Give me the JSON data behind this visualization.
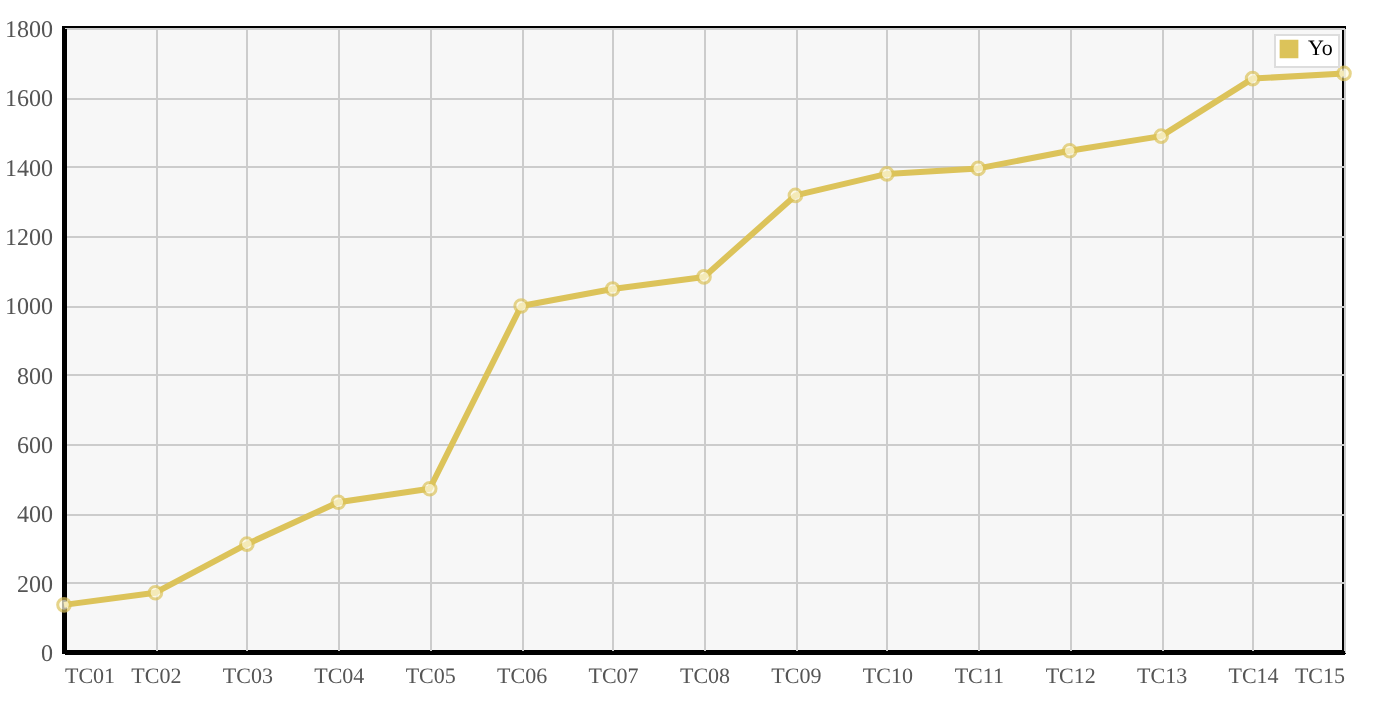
{
  "chart_data": {
    "type": "line",
    "categories": [
      "TC01",
      "TC02",
      "TC03",
      "TC04",
      "TC05",
      "TC06",
      "TC07",
      "TC08",
      "TC09",
      "TC10",
      "TC11",
      "TC12",
      "TC13",
      "TC14",
      "TC15"
    ],
    "series": [
      {
        "name": "Yo",
        "color": "#dcc35a",
        "values": [
          136,
          171,
          311,
          432,
          471,
          998,
          1047,
          1082,
          1317,
          1379,
          1395,
          1446,
          1488,
          1654,
          1669
        ]
      }
    ],
    "ylim": [
      0,
      1800
    ],
    "yticks": [
      0,
      200,
      400,
      600,
      800,
      1000,
      1200,
      1400,
      1600,
      1800
    ],
    "grid": true,
    "legend": "top right",
    "marker": "circle",
    "line_style": "solid"
  }
}
